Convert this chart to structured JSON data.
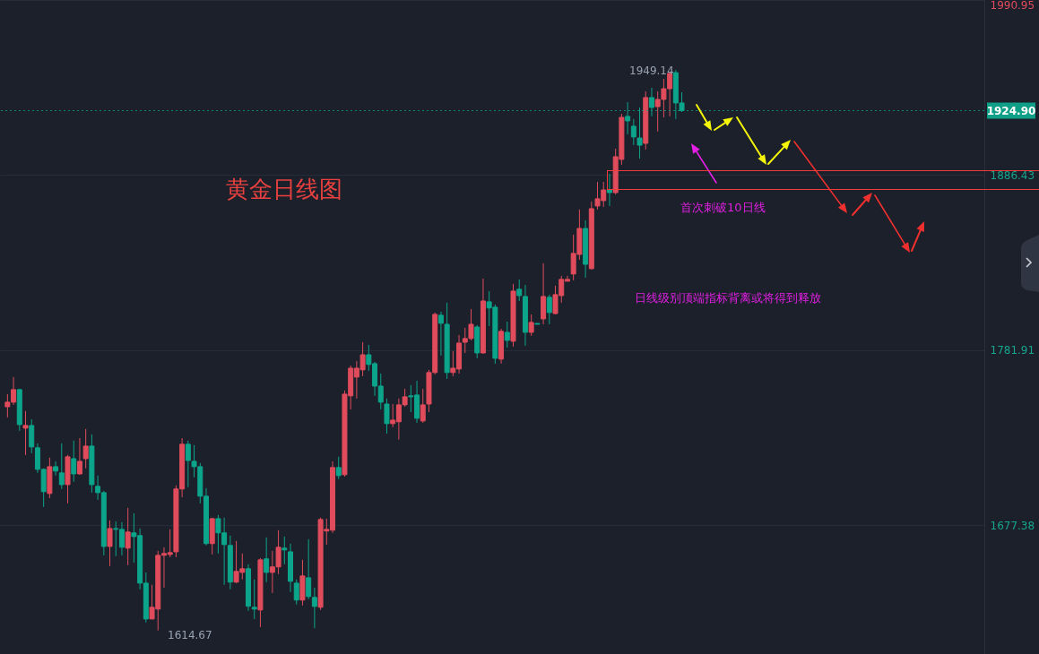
{
  "chart_data": {
    "type": "candlestick",
    "title": "黄金日线图",
    "annotations": [
      "首次刺破10日线",
      "日线级别顶端指标背离或将得到释放",
      "1949.14",
      "1614.67"
    ],
    "categories": [
      null,
      null,
      null,
      null,
      null,
      null,
      null,
      null,
      null,
      null,
      null,
      null,
      null,
      null,
      null,
      null,
      null,
      null,
      null,
      null,
      null,
      null,
      null,
      null,
      null,
      null,
      null,
      null,
      null,
      null,
      null,
      null,
      null,
      null,
      null,
      null,
      null,
      null,
      null,
      null,
      null,
      null,
      null,
      null,
      null,
      null,
      null,
      null,
      null,
      null,
      null,
      null,
      null,
      null,
      null,
      null,
      null,
      null,
      null,
      null,
      null,
      null,
      null,
      null,
      null,
      null,
      null,
      null,
      null,
      null,
      null,
      null,
      null,
      null,
      null,
      null,
      null,
      null,
      null,
      null,
      null,
      null,
      null,
      null,
      null,
      null,
      null,
      null,
      null,
      null,
      null,
      null,
      null,
      null,
      null,
      null,
      null,
      null,
      null,
      null,
      null,
      null,
      null,
      null,
      null,
      null,
      null,
      null,
      null,
      null,
      null,
      null,
      null,
      null,
      null,
      null,
      null,
      null,
      null,
      null,
      null,
      null,
      null,
      null,
      null,
      null,
      null,
      null,
      null,
      null,
      null,
      null,
      null,
      null,
      null,
      null,
      null,
      null,
      null,
      null,
      null,
      null,
      null,
      null,
      null,
      null,
      null,
      null,
      null,
      null,
      null,
      null,
      null,
      null,
      null,
      null,
      null,
      null,
      null,
      null,
      null,
      null
    ],
    "ohlc": [
      [
        1748.2,
        1755.7,
        1741.8,
        1750.9
      ],
      [
        1750.9,
        1765.9,
        1749.3,
        1758.4
      ],
      [
        1758.4,
        1758.9,
        1733.8,
        1737.5
      ],
      [
        1735.4,
        1745.6,
        1719.4,
        1737.0
      ],
      [
        1737.0,
        1740.7,
        1720.4,
        1724.2
      ],
      [
        1723.7,
        1726.3,
        1708.7,
        1710.8
      ],
      [
        1710.8,
        1711.4,
        1688.4,
        1697.5
      ],
      [
        1696.4,
        1717.8,
        1693.7,
        1712.4
      ],
      [
        1712.4,
        1715.6,
        1707.1,
        1709.8
      ],
      [
        1708.7,
        1726.3,
        1699.1,
        1701.7
      ],
      [
        1701.7,
        1719.4,
        1690.5,
        1718.3
      ],
      [
        1717.2,
        1728.0,
        1703.4,
        1708.1
      ],
      [
        1708.1,
        1729.5,
        1707.6,
        1715.6
      ],
      [
        1717.2,
        1734.9,
        1711.4,
        1724.7
      ],
      [
        1724.7,
        1731.7,
        1696.9,
        1701.7
      ],
      [
        1700.7,
        1707.1,
        1692.6,
        1696.9
      ],
      [
        1696.9,
        1698.0,
        1659.5,
        1664.8
      ],
      [
        1664.8,
        1680.4,
        1653.1,
        1675.5
      ],
      [
        1675.5,
        1679.8,
        1659.0,
        1675.0
      ],
      [
        1675.0,
        1679.3,
        1659.5,
        1664.3
      ],
      [
        1663.8,
        1687.8,
        1653.6,
        1673.4
      ],
      [
        1672.9,
        1684.6,
        1655.2,
        1670.7
      ],
      [
        1671.3,
        1675.5,
        1639.2,
        1642.9
      ],
      [
        1642.9,
        1649.3,
        1619.4,
        1621.5
      ],
      [
        1621.5,
        1641.9,
        1621.5,
        1628.5
      ],
      [
        1627.4,
        1662.2,
        1614.67,
        1659.5
      ],
      [
        1659.5,
        1664.3,
        1640.2,
        1660.6
      ],
      [
        1660.0,
        1675.0,
        1658.4,
        1661.1
      ],
      [
        1661.6,
        1701.2,
        1658.4,
        1699.1
      ],
      [
        1699.1,
        1729.5,
        1694.2,
        1725.8
      ],
      [
        1725.8,
        1727.9,
        1700.2,
        1716.1
      ],
      [
        1715.6,
        1725.3,
        1706.0,
        1712.4
      ],
      [
        1712.4,
        1714.6,
        1690.5,
        1694.8
      ],
      [
        1694.8,
        1699.6,
        1665.4,
        1666.5
      ],
      [
        1666.5,
        1681.9,
        1660.0,
        1681.4
      ],
      [
        1681.4,
        1683.6,
        1660.6,
        1672.9
      ],
      [
        1672.9,
        1682.0,
        1641.9,
        1665.9
      ],
      [
        1665.4,
        1671.3,
        1639.2,
        1643.5
      ],
      [
        1643.5,
        1668.1,
        1642.9,
        1649.9
      ],
      [
        1649.3,
        1660.6,
        1645.1,
        1651.5
      ],
      [
        1651.5,
        1654.2,
        1626.4,
        1629.1
      ],
      [
        1628.5,
        1645.1,
        1621.5,
        1627.4
      ],
      [
        1626.9,
        1657.9,
        1616.7,
        1656.8
      ],
      [
        1657.4,
        1670.2,
        1643.5,
        1649.3
      ],
      [
        1649.3,
        1662.2,
        1637.0,
        1652.6
      ],
      [
        1652.6,
        1674.5,
        1648.3,
        1664.3
      ],
      [
        1663.8,
        1670.7,
        1654.2,
        1662.7
      ],
      [
        1661.6,
        1666.5,
        1637.6,
        1644.0
      ],
      [
        1642.9,
        1645.1,
        1630.1,
        1632.8
      ],
      [
        1632.8,
        1656.8,
        1629.6,
        1647.2
      ],
      [
        1646.1,
        1669.1,
        1633.3,
        1634.9
      ],
      [
        1634.4,
        1640.2,
        1616.0,
        1629.0
      ],
      [
        1628.5,
        1682.0,
        1626.9,
        1680.9
      ],
      [
        1674.0,
        1681.4,
        1665.9,
        1675.0
      ],
      [
        1674.5,
        1715.6,
        1672.9,
        1711.9
      ],
      [
        1711.9,
        1718.3,
        1705.0,
        1707.1
      ],
      [
        1707.6,
        1757.9,
        1706.5,
        1755.7
      ],
      [
        1754.7,
        1772.8,
        1746.6,
        1771.2
      ],
      [
        1765.9,
        1775.5,
        1753.1,
        1771.2
      ],
      [
        1770.2,
        1786.7,
        1766.4,
        1779.2
      ],
      [
        1779.2,
        1785.1,
        1769.6,
        1773.4
      ],
      [
        1773.9,
        1775.0,
        1754.7,
        1760.5
      ],
      [
        1760.5,
        1768.0,
        1746.6,
        1750.9
      ],
      [
        1749.8,
        1753.1,
        1732.2,
        1738.1
      ],
      [
        1738.1,
        1749.8,
        1736.0,
        1740.2
      ],
      [
        1739.2,
        1753.1,
        1728.5,
        1749.3
      ],
      [
        1749.3,
        1758.9,
        1748.2,
        1754.1
      ],
      [
        1754.7,
        1761.1,
        1745.0,
        1754.1
      ],
      [
        1755.2,
        1763.7,
        1738.6,
        1741.3
      ],
      [
        1739.7,
        1758.9,
        1738.6,
        1749.3
      ],
      [
        1749.8,
        1770.2,
        1745.0,
        1768.6
      ],
      [
        1768.6,
        1804.4,
        1767.5,
        1803.3
      ],
      [
        1802.8,
        1804.9,
        1778.7,
        1798.0
      ],
      [
        1797.4,
        1810.3,
        1764.8,
        1768.6
      ],
      [
        1768.6,
        1781.4,
        1766.4,
        1771.2
      ],
      [
        1770.7,
        1791.0,
        1768.0,
        1786.2
      ],
      [
        1786.7,
        1795.3,
        1780.3,
        1788.9
      ],
      [
        1788.9,
        1806.5,
        1787.8,
        1797.4
      ],
      [
        1795.8,
        1796.9,
        1777.1,
        1780.3
      ],
      [
        1780.3,
        1824.7,
        1779.8,
        1811.3
      ],
      [
        1810.8,
        1817.2,
        1796.4,
        1807.1
      ],
      [
        1807.6,
        1809.2,
        1773.9,
        1777.1
      ],
      [
        1776.6,
        1794.7,
        1773.9,
        1793.2
      ],
      [
        1792.6,
        1799.0,
        1783.5,
        1787.8
      ],
      [
        1787.3,
        1821.5,
        1784.1,
        1817.2
      ],
      [
        1818.3,
        1824.2,
        1811.3,
        1814.5
      ],
      [
        1814.0,
        1820.9,
        1784.6,
        1792.6
      ],
      [
        1792.6,
        1803.3,
        1790.5,
        1798.5
      ],
      [
        1797.9,
        1797.9,
        1797.4,
        1797.4
      ],
      [
        1800.6,
        1833.8,
        1797.4,
        1814.0
      ],
      [
        1813.5,
        1815.1,
        1797.4,
        1804.4
      ],
      [
        1803.8,
        1820.4,
        1803.3,
        1815.1
      ],
      [
        1814.5,
        1826.3,
        1810.3,
        1824.2
      ],
      [
        1823.1,
        1826.3,
        1823.1,
        1824.2
      ],
      [
        1827.4,
        1850.9,
        1823.6,
        1839.7
      ],
      [
        1839.1,
        1865.9,
        1835.9,
        1854.6
      ],
      [
        1854.6,
        1859.5,
        1825.2,
        1833.2
      ],
      [
        1830.6,
        1870.7,
        1830.0,
        1866.4
      ],
      [
        1868.0,
        1882.4,
        1865.9,
        1872.3
      ],
      [
        1871.2,
        1882.4,
        1867.5,
        1877.6
      ],
      [
        1877.6,
        1887.2,
        1868.0,
        1876.0
      ],
      [
        1876.0,
        1902.2,
        1874.9,
        1897.4
      ],
      [
        1895.8,
        1923.0,
        1892.6,
        1920.9
      ],
      [
        1921.5,
        1930.0,
        1910.8,
        1918.8
      ],
      [
        1915.6,
        1919.9,
        1904.4,
        1909.2
      ],
      [
        1908.6,
        1926.8,
        1896.3,
        1904.3
      ],
      [
        1905.4,
        1936.4,
        1901.7,
        1932.7
      ],
      [
        1932.7,
        1938.6,
        1921.5,
        1926.8
      ],
      [
        1927.3,
        1936.4,
        1912.4,
        1931.6
      ],
      [
        1931.6,
        1943.9,
        1920.9,
        1938.0
      ],
      [
        1938.0,
        1947.9,
        1921.5,
        1947.1
      ],
      [
        1947.6,
        1949.14,
        1919.9,
        1929.5
      ],
      [
        1929.5,
        1935.9,
        1924.1,
        1924.9
      ],
      null,
      null,
      null,
      null,
      null,
      null,
      null,
      null,
      null,
      null,
      null,
      null,
      null,
      null,
      null,
      null,
      null,
      null,
      null,
      null,
      null,
      null,
      null,
      null,
      null,
      null,
      null,
      null,
      null,
      null,
      null,
      null,
      null,
      null,
      null,
      null,
      null,
      null,
      null,
      null,
      null,
      null,
      null,
      null,
      null,
      null,
      null,
      null,
      null
    ],
    "ylim": [
      1600.6,
      1990.95
    ],
    "yticks": [
      1677.38,
      1781.91,
      1886.43,
      1990.95
    ],
    "ref_lines": [
      {
        "axis": "y",
        "value": 1924.9,
        "label": "1924.90",
        "color": "#0f9f86",
        "line_style": "dotted"
      }
    ],
    "grid": "y",
    "tick_labels": "y"
  }
}
